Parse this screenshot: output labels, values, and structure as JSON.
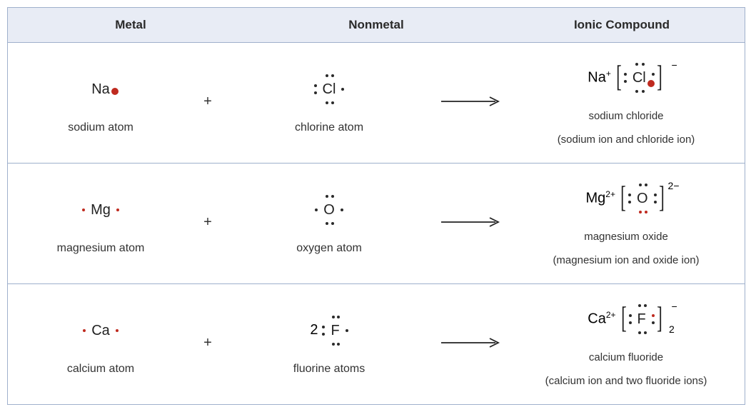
{
  "colors": {
    "border": "#9fb0cc",
    "header_bg": "#e8ecf5",
    "text": "#2a2a2a",
    "dot": "#2a2a2a",
    "red_dot": "#bf2a1f",
    "background": "#ffffff"
  },
  "headers": {
    "metal": "Metal",
    "nonmetal": "Nonmetal",
    "product": "Ionic Compound"
  },
  "symbols": {
    "plus": "+",
    "arrow": "→"
  },
  "rows": [
    {
      "metal": {
        "symbol": "Na",
        "dots": [
          {
            "pos": "d-rM",
            "red": true,
            "big": true
          }
        ],
        "label": "sodium atom"
      },
      "nonmetal": {
        "coef": "",
        "symbol": "Cl",
        "dots": [
          {
            "pos": "d-t1"
          },
          {
            "pos": "d-t2"
          },
          {
            "pos": "d-b1"
          },
          {
            "pos": "d-b2"
          },
          {
            "pos": "d-l1"
          },
          {
            "pos": "d-l2"
          },
          {
            "pos": "d-rM"
          }
        ],
        "label": "chlorine atom"
      },
      "product": {
        "cation": "Na",
        "cation_charge": "+",
        "anion_symbol": "Cl",
        "anion_dots": [
          {
            "pos": "d-t1"
          },
          {
            "pos": "d-t2"
          },
          {
            "pos": "d-b1"
          },
          {
            "pos": "d-b2"
          },
          {
            "pos": "d-l1"
          },
          {
            "pos": "d-l2"
          },
          {
            "pos": "d-r1"
          },
          {
            "pos": "d-r2",
            "red": true,
            "big": true
          }
        ],
        "anion_charge": "−",
        "anion_subscript": "",
        "name": "sodium chloride",
        "desc": "(sodium ion and chloride ion)"
      }
    },
    {
      "metal": {
        "symbol": "Mg",
        "dots": [
          {
            "pos": "d-lM",
            "red": true
          },
          {
            "pos": "d-rM",
            "red": true
          }
        ],
        "label": "magnesium atom"
      },
      "nonmetal": {
        "coef": "",
        "symbol": "O",
        "dots": [
          {
            "pos": "d-t1"
          },
          {
            "pos": "d-t2"
          },
          {
            "pos": "d-b1"
          },
          {
            "pos": "d-b2"
          },
          {
            "pos": "d-lM"
          },
          {
            "pos": "d-rM"
          }
        ],
        "label": "oxygen atom"
      },
      "product": {
        "cation": "Mg",
        "cation_charge": "2+",
        "anion_symbol": "O",
        "anion_dots": [
          {
            "pos": "d-t1"
          },
          {
            "pos": "d-t2"
          },
          {
            "pos": "d-b1",
            "red": true
          },
          {
            "pos": "d-b2",
            "red": true
          },
          {
            "pos": "d-l1"
          },
          {
            "pos": "d-l2"
          },
          {
            "pos": "d-r1"
          },
          {
            "pos": "d-r2"
          }
        ],
        "anion_charge": "2−",
        "anion_subscript": "",
        "name": "magnesium oxide",
        "desc": "(magnesium ion and oxide ion)"
      }
    },
    {
      "metal": {
        "symbol": "Ca",
        "dots": [
          {
            "pos": "d-lM",
            "red": true
          },
          {
            "pos": "d-rM",
            "red": true
          }
        ],
        "label": "calcium atom"
      },
      "nonmetal": {
        "coef": "2",
        "symbol": "F",
        "dots": [
          {
            "pos": "d-t1"
          },
          {
            "pos": "d-t2"
          },
          {
            "pos": "d-b1"
          },
          {
            "pos": "d-b2"
          },
          {
            "pos": "d-l1"
          },
          {
            "pos": "d-l2"
          },
          {
            "pos": "d-rM"
          }
        ],
        "label": "fluorine atoms"
      },
      "product": {
        "cation": "Ca",
        "cation_charge": "2+",
        "anion_symbol": "F",
        "anion_dots": [
          {
            "pos": "d-t1"
          },
          {
            "pos": "d-t2"
          },
          {
            "pos": "d-b1"
          },
          {
            "pos": "d-b2"
          },
          {
            "pos": "d-l1"
          },
          {
            "pos": "d-l2"
          },
          {
            "pos": "d-r1",
            "red": true
          },
          {
            "pos": "d-r2"
          }
        ],
        "anion_charge": "−",
        "anion_subscript": "2",
        "name": "calcium fluoride",
        "desc": "(calcium ion and two fluoride ions)"
      }
    }
  ]
}
